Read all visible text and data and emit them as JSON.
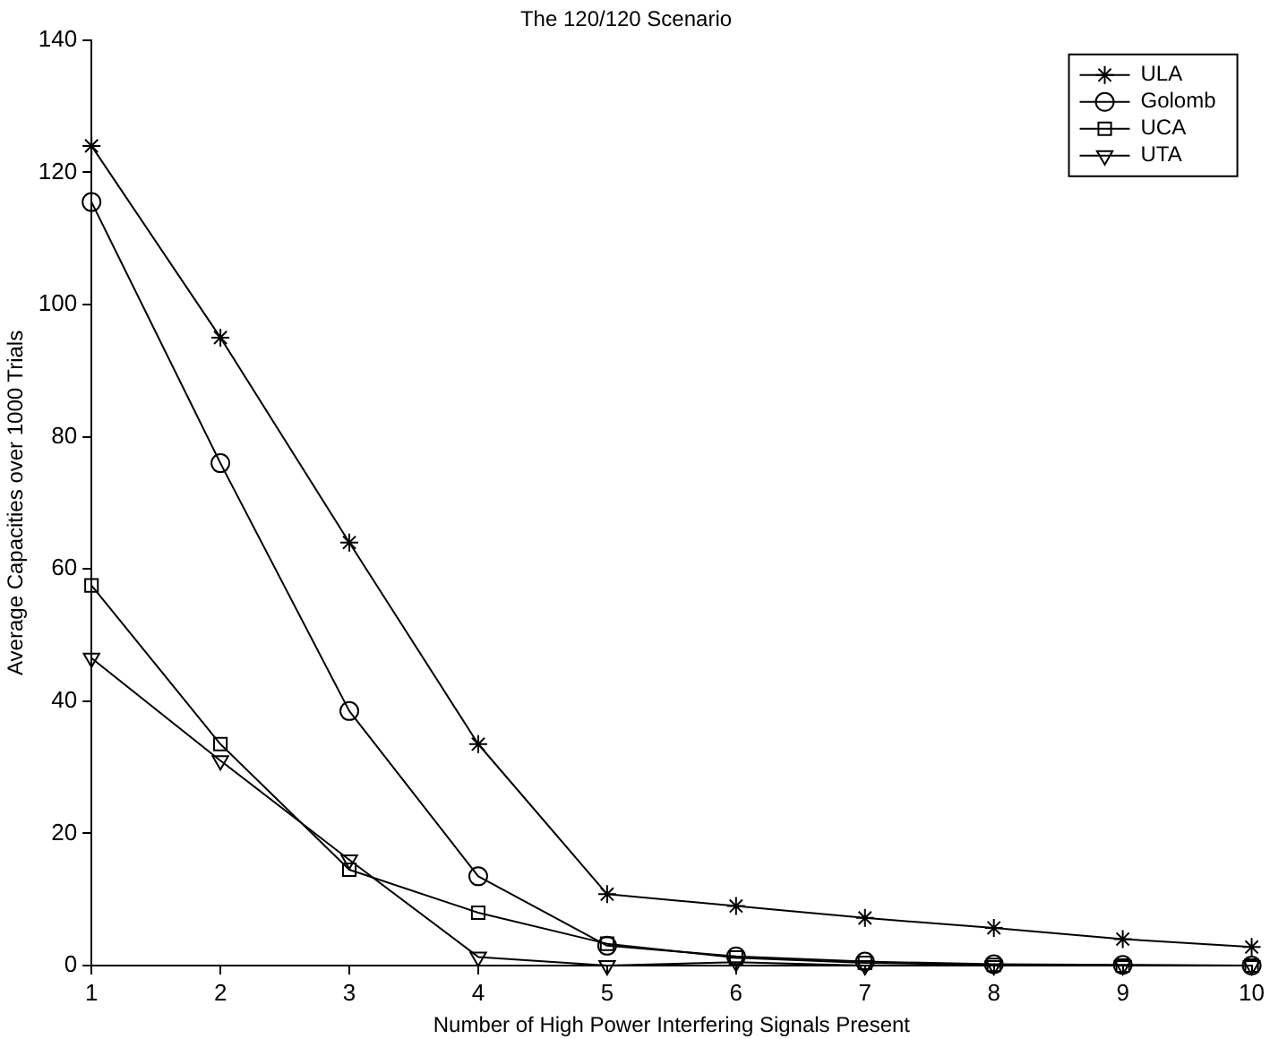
{
  "chart_data": {
    "type": "line",
    "title": "The 120/120 Scenario",
    "xlabel": "Number of High Power Interfering Signals Present",
    "ylabel": "Average Capacities over 1000 Trials",
    "x": [
      1,
      2,
      3,
      4,
      5,
      6,
      7,
      8,
      9,
      10
    ],
    "series": [
      {
        "name": "ULA",
        "color": "#000000",
        "marker": "cross",
        "values": [
          124,
          95,
          64,
          33.5,
          10.8,
          9,
          7.2,
          5.7,
          4,
          2.8
        ]
      },
      {
        "name": "Golomb",
        "color": "#000000",
        "marker": "circle",
        "values": [
          115.5,
          76,
          38.5,
          13.5,
          3,
          1.4,
          0.6,
          0.2,
          0.1,
          0
        ]
      },
      {
        "name": "UCA",
        "color": "#000000",
        "marker": "square",
        "values": [
          57.5,
          33.5,
          14.5,
          8,
          3.3,
          1.2,
          0.4,
          0.1,
          0,
          0
        ]
      },
      {
        "name": "UTA",
        "color": "#000000",
        "marker": "triangle",
        "values": [
          46.5,
          31,
          16,
          1.3,
          0,
          0.5,
          0,
          0,
          0,
          0
        ]
      }
    ],
    "xlim": [
      1,
      10
    ],
    "xticks": [
      1,
      2,
      3,
      4,
      5,
      6,
      7,
      8,
      9,
      10
    ],
    "ylim": [
      0,
      140
    ],
    "yticks": [
      0,
      20,
      40,
      60,
      80,
      100,
      120,
      140
    ],
    "grid": false,
    "legend": "top right",
    "line_style": "solid"
  }
}
